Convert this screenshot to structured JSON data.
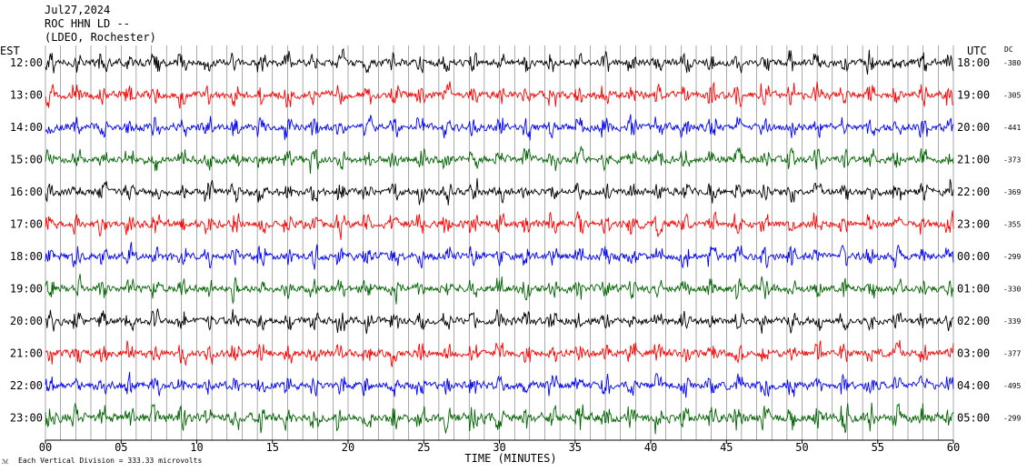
{
  "header": {
    "date": "Jul27,2024",
    "station": "ROC HHN LD --",
    "location": "(LDEO, Rochester)"
  },
  "chart_data": {
    "type": "line",
    "left_axis_title": "EST",
    "right_axis_title": "UTC",
    "dc_title": "DC",
    "xlabel": "TIME (MINUTES)",
    "xlim": [
      0,
      60
    ],
    "x_ticks": [
      "00",
      "05",
      "10",
      "15",
      "20",
      "25",
      "30",
      "35",
      "40",
      "45",
      "50",
      "55",
      "60"
    ],
    "grid": true,
    "footnote": "Each Vertical Division =  333.33 microvolts",
    "colors": [
      "#000000",
      "#ff0000",
      "#0000ff",
      "#006400"
    ],
    "rows": [
      {
        "est": "12:00",
        "utc": "18:00",
        "dc": "-380",
        "color": "#000000"
      },
      {
        "est": "13:00",
        "utc": "19:00",
        "dc": "-305",
        "color": "#ff0000"
      },
      {
        "est": "14:00",
        "utc": "20:00",
        "dc": "-441",
        "color": "#0000ff"
      },
      {
        "est": "15:00",
        "utc": "21:00",
        "dc": "-373",
        "color": "#006400"
      },
      {
        "est": "16:00",
        "utc": "22:00",
        "dc": "-369",
        "color": "#000000"
      },
      {
        "est": "17:00",
        "utc": "23:00",
        "dc": "-355",
        "color": "#ff0000"
      },
      {
        "est": "18:00",
        "utc": "00:00",
        "dc": "-299",
        "color": "#0000ff"
      },
      {
        "est": "19:00",
        "utc": "01:00",
        "dc": "-330",
        "color": "#006400"
      },
      {
        "est": "20:00",
        "utc": "02:00",
        "dc": "-339",
        "color": "#000000"
      },
      {
        "est": "21:00",
        "utc": "03:00",
        "dc": "-377",
        "color": "#ff0000"
      },
      {
        "est": "22:00",
        "utc": "04:00",
        "dc": "-495",
        "color": "#0000ff"
      },
      {
        "est": "23:00",
        "utc": "05:00",
        "dc": "-299",
        "color": "#006400"
      }
    ]
  }
}
